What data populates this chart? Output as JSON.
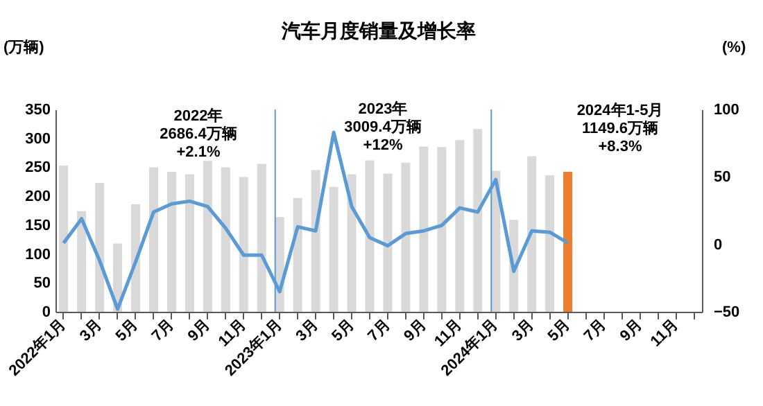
{
  "chart_data": {
    "type": "bar",
    "title": "汽车月度销量及增长率",
    "ylabel": "(万辆)",
    "y2label": "(%)",
    "categories": [
      "2022年1月",
      null,
      "3月",
      null,
      "5月",
      null,
      "7月",
      null,
      "9月",
      null,
      "11月",
      null,
      "2023年1月",
      null,
      "3月",
      null,
      "5月",
      null,
      "7月",
      null,
      "9月",
      null,
      "11月",
      null,
      "2024年1月",
      null,
      "3月",
      null,
      "5月",
      null,
      "7月",
      null,
      "9月",
      null,
      "11月",
      null
    ],
    "series": [
      {
        "colors": [
          "#d9d9d9",
          "#d9d9d9",
          "#d9d9d9",
          "#d9d9d9",
          "#d9d9d9",
          "#d9d9d9",
          "#d9d9d9",
          "#d9d9d9",
          "#d9d9d9",
          "#d9d9d9",
          "#d9d9d9",
          "#d9d9d9",
          "#d9d9d9",
          "#d9d9d9",
          "#d9d9d9",
          "#d9d9d9",
          "#d9d9d9",
          "#d9d9d9",
          "#d9d9d9",
          "#d9d9d9",
          "#d9d9d9",
          "#d9d9d9",
          "#d9d9d9",
          "#d9d9d9",
          "#d9d9d9",
          "#d9d9d9",
          "#d9d9d9",
          "#d9d9d9",
          "#ed7d31",
          null,
          null,
          null,
          null,
          null,
          null,
          null
        ],
        "values": [
          253,
          174,
          223,
          118,
          186,
          250,
          242,
          238,
          261,
          250,
          233,
          256,
          164,
          197,
          245,
          216,
          238,
          262,
          239,
          258,
          286,
          285,
          297,
          316,
          244,
          159,
          269,
          236,
          242,
          null,
          null,
          null,
          null,
          null,
          null,
          null
        ]
      },
      {
        "type": "line",
        "axis": "y2",
        "color": "#5b9bd5",
        "values": [
          1,
          19,
          -12,
          -48,
          -13,
          24,
          30,
          32,
          28,
          12,
          -8,
          -8,
          -35,
          13,
          10,
          83,
          28,
          5,
          -1,
          8,
          10,
          14,
          27,
          24,
          48,
          -20,
          10,
          9,
          1,
          null,
          null,
          null,
          null,
          null,
          null,
          null
        ]
      }
    ],
    "ylim": [
      0,
      350
    ],
    "yticks": [
      0,
      50,
      100,
      150,
      200,
      250,
      300,
      350
    ],
    "y2lim": [
      -50,
      100
    ],
    "y2ticks": [
      -50,
      0,
      50,
      100
    ],
    "ref_lines": [
      {
        "axis": "x",
        "value": "2023年1月",
        "color": "#5b9bd5"
      },
      {
        "axis": "x",
        "value": "2024年1月",
        "color": "#5b9bd5"
      }
    ],
    "annotations": [
      "2022年\n2686.4万辆\n+2.1%",
      "2023年\n3009.4万辆\n+12%",
      "2024年1-5月\n1149.6万辆\n+8.3%"
    ],
    "grid": false
  }
}
